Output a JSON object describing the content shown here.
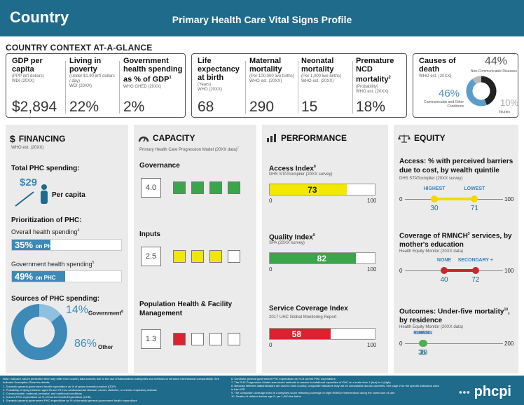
{
  "header": {
    "country": "Country",
    "title": "Primary Health Care Vital Signs Profile"
  },
  "context": {
    "title": "COUNTRY CONTEXT AT-A-GLANCE",
    "gdp": {
      "title": "GDP per capita",
      "sub": "(PPP int'l dollars)\nWDI (20XX)",
      "value": "$2,894"
    },
    "poverty": {
      "title": "Living in poverty",
      "sub": "(Under $1.90 int'l dollars / day)\nWDI (20XX)",
      "value": "22%"
    },
    "govspend": {
      "title": "Government health spending as % of GDP",
      "sup": "1",
      "sub": "WHO GHED (20XX)",
      "value": "2%"
    },
    "life": {
      "title": "Life expectancy at birth",
      "sub": "(Years)\nWHO (20XX)",
      "value": "68"
    },
    "maternal": {
      "title": "Maternal mortality",
      "sub": "(Per 100,000 live births)\nWHO est. (20XX)",
      "value": "290"
    },
    "neonatal": {
      "title": "Neonatal mortality",
      "sub": "(Per 1,000 live births)\nWHO est. (20XX)",
      "value": "15"
    },
    "ncd": {
      "title": "Premature NCD mortality",
      "sup": "2",
      "sub": "(Probability)\nWHO est. (20XX)",
      "value": "18%"
    },
    "causes": {
      "title": "Causes of death",
      "sub": "WHO est. (20XX)",
      "ncd_pct": "44%",
      "ncd_label": "Non-Communicable Diseases",
      "comm_pct": "46%",
      "comm_label": "Communicable and Other Conditions",
      "inj_pct": "10%",
      "inj_label": "Injuries",
      "values": [
        44,
        46,
        10
      ]
    }
  },
  "financing": {
    "title": "FINANCING",
    "source": "WHO est. (20XX)",
    "total_label": "Total PHC spending:",
    "per_capita_value": "$29",
    "per_capita_label": "Per capita",
    "prior_label": "Prioritization of PHC:",
    "overall_label": "Overall health spending",
    "overall_sup": "4",
    "overall_value": "35%",
    "overall_pct": 35,
    "gov_label": "Government health spending",
    "gov_sup": "5",
    "gov_value": "49%",
    "gov_pct": 49,
    "on_phc": "on PHC",
    "sources_label": "Sources of PHC spending:",
    "gov_src_value": "14%",
    "gov_src_label": "Government",
    "gov_src_sup": "6",
    "other_value": "86%",
    "other_label": "Other",
    "donut": [
      14,
      86
    ]
  },
  "capacity": {
    "title": "CAPACITY",
    "subtitle": "Primary Health Care Progression Model (20XX data)",
    "sup": "7",
    "groups": [
      {
        "label": "Governance",
        "score": "4.0",
        "level": 4,
        "color": "#3aa64a"
      },
      {
        "label": "Inputs",
        "score": "2.5",
        "level": 3,
        "color": "#f0e800"
      },
      {
        "label": "Population Health & Facility Management",
        "score": "1.3",
        "level": 1,
        "color": "#d9232e"
      }
    ]
  },
  "performance": {
    "title": "PERFORMANCE",
    "access": {
      "label": "Access Index",
      "sup": "8",
      "source": "DHS STATcompiler (20XX survey)",
      "value": 73,
      "color": "#f5e800"
    },
    "quality": {
      "label": "Quality Index",
      "sup": "9",
      "source": "SPA (20XX survey)",
      "value": 82,
      "color": "#3aa64a"
    },
    "coverage": {
      "label": "Service Coverage Index",
      "source": "2017 UHC Global Monitoring Report",
      "value": 58,
      "color": "#d9232e"
    },
    "axis_min": "0",
    "axis_max": "100"
  },
  "equity": {
    "title": "EQUITY",
    "barriers": {
      "label": "Access: % with perceived barriers due to cost, by wealth quintile",
      "source": "DHS STATcompiler (20XX survey)",
      "low_label": "HIGHEST",
      "high_label": "LOWEST",
      "low": 30,
      "high": 71,
      "low_text": "30",
      "high_text": "71",
      "max": 100,
      "color": "#f5d800",
      "label_color": "#3a7fc1"
    },
    "rmnch": {
      "label": "Coverage of RMNCH",
      "sup": "3",
      "label2": " services, by mother's education",
      "source": "Health Equity Monitor (20XX data)",
      "low_label": "NONE",
      "high_label": "SECONDARY +",
      "low": 40,
      "high": 72,
      "low_text": "40",
      "high_text": "72",
      "max": 100,
      "color": "#c42a2a",
      "label_color": "#3a7fc1"
    },
    "u5": {
      "label": "Outcomes: Under-five mortality",
      "sup": "10",
      "label2": ", by residence",
      "source": "Health Equity Monitor (20XX data)",
      "low_label": "RURAL",
      "high_label": "URBAN",
      "low": 35,
      "high": 38,
      "low_text": "35",
      "high_text": "38",
      "max": 200,
      "max_text": "200",
      "color": "#4caf50",
      "label_color": "#3a7fc1"
    },
    "axis_min": "0",
    "axis_max": "100"
  },
  "footer": {
    "note": "Note: Indicator values presented here may differ from country data sources due to the use of standardized categories and methods to enhance international comparability. See Indicator Description Sheet for details.",
    "left": [
      "1. Domestic general government health expenditure as % of gross domestic product (GDP)",
      "2. Probability of dying between ages 30 and 70 from cardiovascular disease, cancer, diabetes, or chronic respiratory disease",
      "3. Communicable, maternal, perinatal, and nutritional conditions",
      "4. Current PHC expenditure as % of Current Health Expenditure (CHE)",
      "5. Domestic general government PHC expenditure as % of domestic general government health expenditure"
    ],
    "right": [
      "6. Domestic general government PHC expenditure as % of current PHC expenditure",
      "7. The PHC Progression Model uses mixed methods to assess foundational capacities of PHC on a scale from 1 (low) to 4 (high)",
      "8. Because different data/indicators are used in each country, composite indicators may not be comparable across countries. See page 2 for the specific indicators used in this VSP.",
      "9. The composite coverage index is a weighted score reflecting coverage of eight RMNCH interventions along the continuum of care",
      "10. Deaths of children before age 5, per 1,000 live births"
    ],
    "logo": "phcpi"
  }
}
